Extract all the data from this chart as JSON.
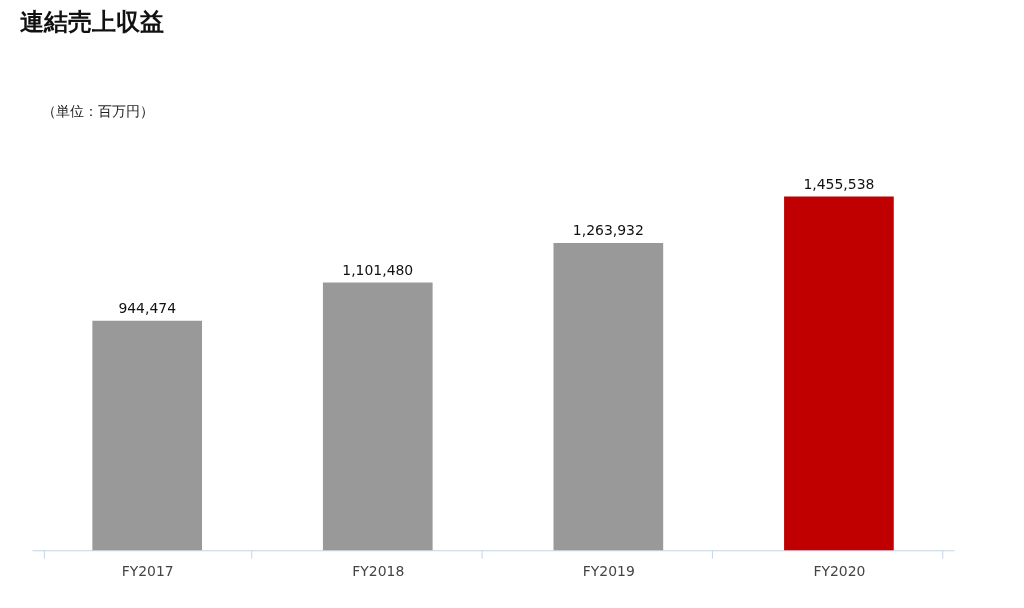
{
  "chart_data": {
    "type": "bar",
    "title": "連結売上収益",
    "annotations": [
      "（単位：百万円）"
    ],
    "categories": [
      "FY2017",
      "FY2018",
      "FY2019",
      "FY2020"
    ],
    "values": [
      944474,
      1101480,
      1263932,
      1455538
    ],
    "colors": [
      "#999999",
      "#999999",
      "#999999",
      "#c00000"
    ],
    "value_labels": [
      "944,474",
      "1,101,480",
      "1,263,932",
      "1,455,538"
    ]
  }
}
